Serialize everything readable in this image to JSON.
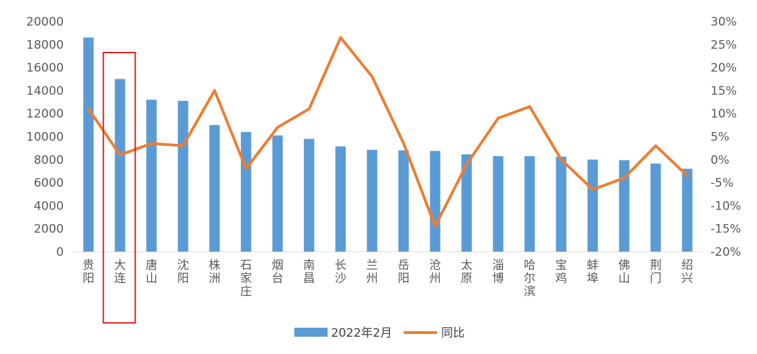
{
  "chart_data": {
    "type": "bar",
    "categories": [
      "贵阳",
      "大连",
      "唐山",
      "沈阳",
      "株洲",
      "石家庄",
      "烟台",
      "南昌",
      "长沙",
      "兰州",
      "岳阳",
      "沧州",
      "太原",
      "淄博",
      "哈尔滨",
      "宝鸡",
      "蚌埠",
      "佛山",
      "荆门",
      "绍兴"
    ],
    "series": [
      {
        "name": "2022年2月",
        "type": "bar",
        "axis": "left",
        "color": "#5B9BD5",
        "values": [
          18600,
          15000,
          13200,
          13100,
          11000,
          10400,
          10100,
          9800,
          9150,
          8850,
          8800,
          8750,
          8450,
          8300,
          8300,
          8250,
          8000,
          7950,
          7650,
          7200
        ]
      },
      {
        "name": "同比",
        "type": "line",
        "axis": "right",
        "color": "#ED7D31",
        "values": [
          11,
          1,
          3.5,
          3,
          15,
          -2,
          7,
          11,
          26.5,
          18,
          3.5,
          -14.5,
          -1,
          9,
          11.5,
          0,
          -6.5,
          -4,
          3,
          -3.5
        ]
      }
    ],
    "y_left": {
      "min": 0,
      "max": 20000,
      "ticks": [
        "0",
        "2000",
        "4000",
        "6000",
        "8000",
        "10000",
        "12000",
        "14000",
        "16000",
        "18000",
        "20000"
      ]
    },
    "y_right": {
      "min": -20,
      "max": 30,
      "ticks": [
        "-20%",
        "-15%",
        "-10%",
        "-5%",
        "0%",
        "5%",
        "10%",
        "15%",
        "20%",
        "25%",
        "30%"
      ]
    },
    "highlight": {
      "category": "大连",
      "color": "#E02020"
    },
    "legend": {
      "position": "bottom"
    },
    "grid": false
  }
}
